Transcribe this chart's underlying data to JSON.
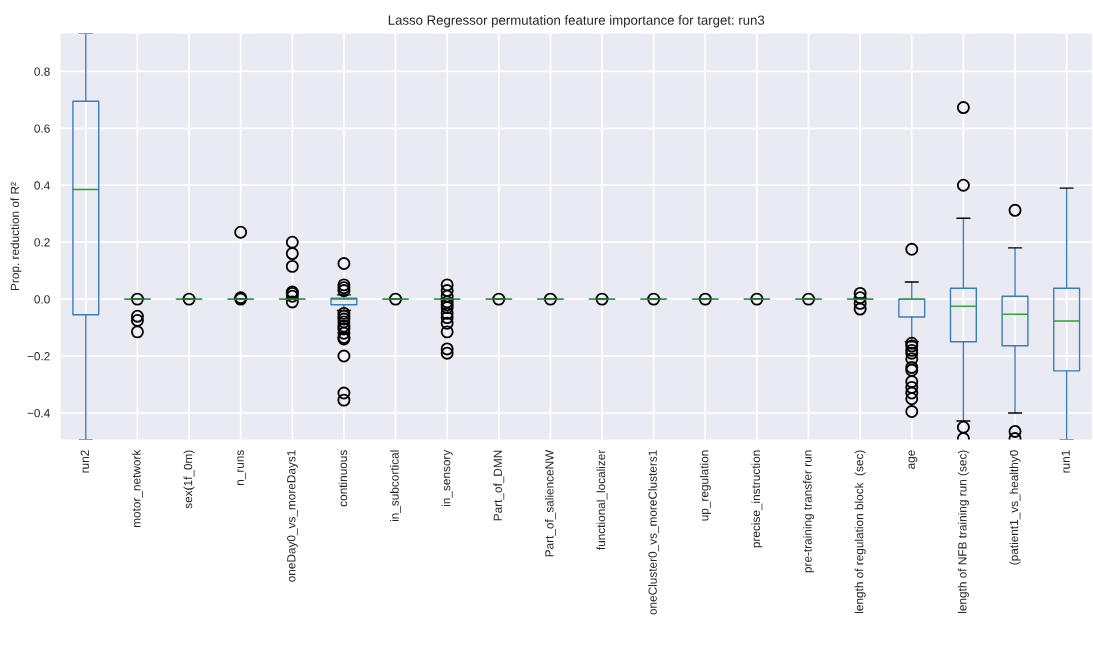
{
  "chart_data": {
    "type": "box",
    "title": "Lasso Regressor permutation feature importance for target: run3",
    "ylabel": "Prop. reduction of R²",
    "categories": [
      "run2",
      "motor_network",
      "sex(1f_0m)",
      "n_runs",
      "oneDay0_vs_moreDays1",
      "continuous",
      "in_subcortical",
      "in_sensory",
      "Part_of_DMN",
      "Part_of_salienceNW",
      "functional_localizer",
      "oneCluster0_vs_moreClusters1",
      "up_regulation",
      "precise_instruction",
      "pre-training transfer run",
      "length of regulation block  (sec)",
      "age",
      "length of NFB training run (sec)",
      "(patient1_vs_healthy0",
      "run1"
    ],
    "ylim": [
      -0.495,
      0.935
    ],
    "yticks": [
      {
        "value": -0.4,
        "label": "−0.4"
      },
      {
        "value": -0.2,
        "label": "−0.2"
      },
      {
        "value": 0.0,
        "label": "0.0"
      },
      {
        "value": 0.2,
        "label": "0.2"
      },
      {
        "value": 0.4,
        "label": "0.4"
      },
      {
        "value": 0.6,
        "label": "0.6"
      },
      {
        "value": 0.8,
        "label": "0.8"
      }
    ],
    "grid": true,
    "marker": "circle",
    "series": [
      {
        "color": "#3a7dbd",
        "boxes": [
          {
            "low": -0.495,
            "q1": -0.055,
            "median": 0.385,
            "q3": 0.695,
            "high": 0.935
          },
          {
            "low": 0,
            "q1": 0,
            "median": 0,
            "q3": 0,
            "high": 0,
            "outliers": [
              0,
              -0.06,
              -0.075,
              -0.115
            ]
          },
          {
            "low": 0,
            "q1": 0,
            "median": 0,
            "q3": 0,
            "high": 0,
            "outliers": [
              0
            ]
          },
          {
            "low": 0,
            "q1": 0,
            "median": 0,
            "q3": 0,
            "high": 0,
            "outliers": [
              0.235,
              0.005,
              0
            ]
          },
          {
            "low": 0,
            "q1": 0,
            "median": 0,
            "q3": 0,
            "high": 0,
            "outliers": [
              0.2,
              0.16,
              0.115,
              0.025,
              0.02,
              0.01,
              -0.01
            ]
          },
          {
            "low": -0.04,
            "q1": -0.02,
            "median": 0,
            "q3": 0.003,
            "high": 0.015,
            "outliers": [
              0.125,
              0.05,
              0.04,
              0.03,
              -0.05,
              -0.06,
              -0.07,
              -0.08,
              -0.095,
              -0.105,
              -0.12,
              -0.135,
              -0.14,
              -0.2,
              -0.33,
              -0.355
            ]
          },
          {
            "low": 0,
            "q1": 0,
            "median": 0,
            "q3": 0,
            "high": 0,
            "outliers": [
              0
            ]
          },
          {
            "low": 0,
            "q1": 0,
            "median": 0,
            "q3": 0,
            "high": 0,
            "outliers": [
              0.05,
              0.03,
              0.01,
              -0.01,
              -0.02,
              -0.03,
              -0.05,
              -0.065,
              -0.085,
              -0.115,
              -0.175,
              -0.19
            ]
          },
          {
            "low": 0,
            "q1": 0,
            "median": 0,
            "q3": 0,
            "high": 0,
            "outliers": [
              0
            ]
          },
          {
            "low": 0,
            "q1": 0,
            "median": 0,
            "q3": 0,
            "high": 0,
            "outliers": [
              0
            ]
          },
          {
            "low": 0,
            "q1": 0,
            "median": 0,
            "q3": 0,
            "high": 0,
            "outliers": [
              0
            ]
          },
          {
            "low": 0,
            "q1": 0,
            "median": 0,
            "q3": 0,
            "high": 0,
            "outliers": [
              0
            ]
          },
          {
            "low": 0,
            "q1": 0,
            "median": 0,
            "q3": 0,
            "high": 0,
            "outliers": [
              0
            ]
          },
          {
            "low": 0,
            "q1": 0,
            "median": 0,
            "q3": 0,
            "high": 0,
            "outliers": [
              0
            ]
          },
          {
            "low": 0,
            "q1": 0,
            "median": 0,
            "q3": 0,
            "high": 0,
            "outliers": [
              0
            ]
          },
          {
            "low": 0,
            "q1": 0,
            "median": 0,
            "q3": 0,
            "high": 0,
            "outliers": [
              0.02,
              0.005,
              -0.015,
              -0.035
            ]
          },
          {
            "low": -0.15,
            "q1": -0.063,
            "median": 0,
            "q3": 0,
            "high": 0.06,
            "outliers": [
              0.175,
              -0.155,
              -0.165,
              -0.18,
              -0.19,
              -0.21,
              -0.24,
              -0.25,
              -0.29,
              -0.31,
              -0.33,
              -0.35,
              -0.395
            ]
          },
          {
            "low": -0.428,
            "q1": -0.15,
            "median": -0.025,
            "q3": 0.038,
            "high": 0.284,
            "outliers": [
              0.673,
              0.4,
              -0.45,
              -0.49
            ]
          },
          {
            "low": -0.4,
            "q1": -0.164,
            "median": -0.053,
            "q3": 0.01,
            "high": 0.18,
            "outliers": [
              0.312,
              -0.465,
              -0.49
            ]
          },
          {
            "low": -0.495,
            "q1": -0.252,
            "median": -0.077,
            "q3": 0.038,
            "high": 0.39
          }
        ]
      }
    ]
  }
}
